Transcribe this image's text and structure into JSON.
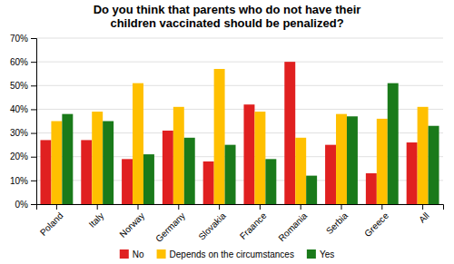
{
  "chart_data": {
    "type": "bar",
    "title": "Do you think that parents who do not have their\nchildren vaccinated should be penalized?",
    "categories": [
      "Poland",
      "Italy",
      "Norway",
      "Germany",
      "Slovakia",
      "Fraance",
      "Romania",
      "Serbia",
      "Greece",
      "All"
    ],
    "series": [
      {
        "name": "No",
        "color": "#e02020",
        "values": [
          27,
          27,
          19,
          31,
          18,
          42,
          60,
          25,
          13,
          26
        ]
      },
      {
        "name": "Depends on the circumstances",
        "color": "#ffc000",
        "values": [
          35,
          39,
          51,
          41,
          57,
          39,
          28,
          38,
          36,
          41
        ]
      },
      {
        "name": "Yes",
        "color": "#1a7a1a",
        "values": [
          38,
          35,
          21,
          28,
          25,
          19,
          12,
          37,
          51,
          33
        ]
      }
    ],
    "ylim": [
      0,
      70
    ],
    "yticks": [
      {
        "value": 0,
        "label": "0%"
      },
      {
        "value": 10,
        "label": "10%"
      },
      {
        "value": 20,
        "label": "20%"
      },
      {
        "value": 30,
        "label": "30%"
      },
      {
        "value": 40,
        "label": "40%"
      },
      {
        "value": 50,
        "label": "50%"
      },
      {
        "value": 60,
        "label": "60%"
      },
      {
        "value": 70,
        "label": "70%"
      }
    ],
    "grid": true,
    "legend": "bottom"
  }
}
